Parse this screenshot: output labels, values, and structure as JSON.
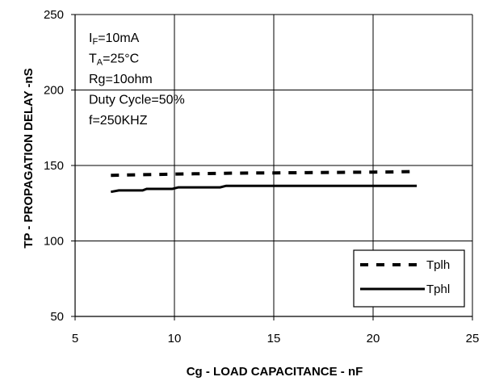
{
  "chart_data": {
    "type": "line",
    "xlabel": "Cg - LOAD CAPACITANCE - nF",
    "ylabel": "TP - PROPAGATION DELAY -nS",
    "xlim": [
      5,
      25
    ],
    "ylim": [
      50,
      250
    ],
    "x_ticks": [
      "5",
      "10",
      "15",
      "20",
      "25"
    ],
    "y_ticks": [
      "50",
      "100",
      "150",
      "200",
      "250"
    ],
    "grid": true,
    "legend_position": "bottom-right",
    "annotations": [
      {
        "parts": [
          {
            "t": "I"
          },
          {
            "t": "F",
            "sub": true
          },
          {
            "t": "=10mA"
          }
        ]
      },
      {
        "parts": [
          {
            "t": "T"
          },
          {
            "t": "A",
            "sub": true
          },
          {
            "t": "=25°C"
          }
        ]
      },
      {
        "parts": [
          {
            "t": "Rg=10ohm"
          }
        ]
      },
      {
        "parts": [
          {
            "t": "Duty Cycle=50%"
          }
        ]
      },
      {
        "parts": [
          {
            "t": "f=250KHZ"
          }
        ]
      }
    ],
    "series": [
      {
        "name": "Tplh",
        "style": "dashed",
        "x": [
          6.8,
          8.0,
          9.0,
          10.0,
          11.0,
          12.0,
          13.0,
          14.0,
          15.0,
          16.0,
          17.0,
          18.0,
          19.0,
          20.0,
          21.0,
          22.0
        ],
        "y": [
          143.5,
          143.8,
          144.0,
          144.3,
          144.5,
          144.7,
          144.9,
          145.0,
          145.1,
          145.2,
          145.3,
          145.4,
          145.5,
          145.6,
          145.7,
          146.0
        ]
      },
      {
        "name": "Tphl",
        "style": "solid",
        "x": [
          6.8,
          7.2,
          8.4,
          8.6,
          9.9,
          10.2,
          12.3,
          12.6,
          22.2
        ],
        "y": [
          132.5,
          133.5,
          133.5,
          134.5,
          134.5,
          135.5,
          135.5,
          136.5,
          136.5
        ]
      }
    ]
  }
}
